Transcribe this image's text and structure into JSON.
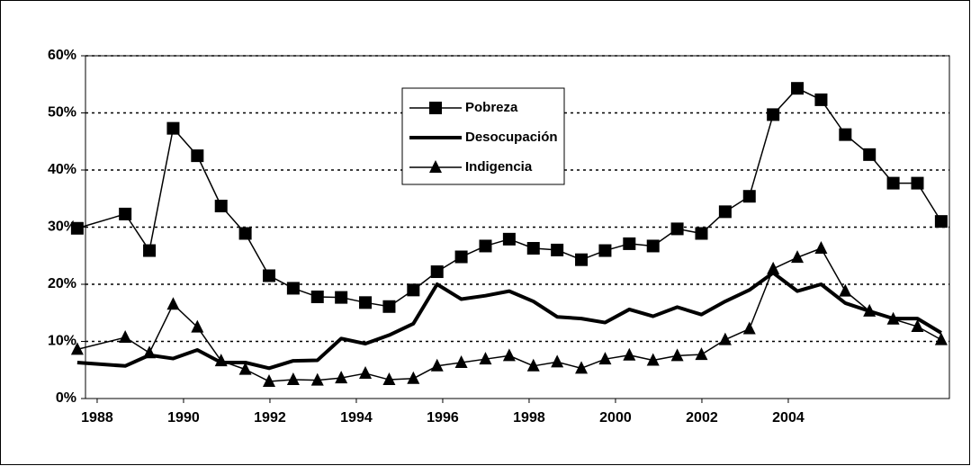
{
  "chart_data": {
    "type": "line",
    "x": [
      1987.54,
      1988.65,
      1989.21,
      1989.76,
      1990.32,
      1990.87,
      1991.43,
      1991.98,
      1992.54,
      1993.1,
      1993.65,
      1994.21,
      1994.76,
      1995.32,
      1995.87,
      1996.43,
      1996.99,
      1997.54,
      1998.1,
      1998.65,
      1999.21,
      1999.76,
      2000.32,
      2000.87,
      2001.43,
      2001.99,
      2002.54,
      2003.1,
      2003.65,
      2004.21,
      2004.76,
      2005.32,
      2005.88,
      2006.43,
      2006.99,
      2007.54
    ],
    "series": [
      {
        "name": "Pobreza",
        "color": "#000000",
        "marker": "square",
        "line_width": 1.5,
        "values": [
          29.8,
          32.3,
          25.9,
          47.3,
          42.5,
          33.7,
          28.9,
          21.5,
          19.3,
          17.8,
          17.7,
          16.8,
          16.1,
          19.0,
          22.2,
          24.8,
          26.7,
          27.9,
          26.3,
          26.0,
          24.3,
          25.9,
          27.1,
          26.7,
          29.7,
          28.9,
          32.7,
          35.4,
          49.7,
          54.3,
          52.3,
          46.2,
          42.7,
          37.7,
          37.7,
          31.0
        ]
      },
      {
        "name": "Desocupación",
        "color": "#000000",
        "marker": "none",
        "line_width": 4,
        "values": [
          6.3,
          5.7,
          7.6,
          7.0,
          8.5,
          6.3,
          6.3,
          5.3,
          6.6,
          6.7,
          10.5,
          9.6,
          11.1,
          13.1,
          20.0,
          17.4,
          18.0,
          18.8,
          17.0,
          14.3,
          14.0,
          13.3,
          15.6,
          14.4,
          16.0,
          14.7,
          17.0,
          19.0,
          22.0,
          18.8,
          20.0,
          16.7,
          15.3,
          14.0,
          14.0,
          11.5
        ]
      },
      {
        "name": "Indigencia",
        "color": "#000000",
        "marker": "triangle",
        "line_width": 1.5,
        "values": [
          8.6,
          10.7,
          8.0,
          16.5,
          12.5,
          6.6,
          5.1,
          3.0,
          3.3,
          3.2,
          3.6,
          4.4,
          3.3,
          3.5,
          5.7,
          6.3,
          6.9,
          7.5,
          5.7,
          6.4,
          5.3,
          6.9,
          7.6,
          6.7,
          7.5,
          7.7,
          10.3,
          12.2,
          22.7,
          24.7,
          26.3,
          18.8,
          15.3,
          13.9,
          12.6,
          10.3
        ]
      }
    ],
    "xlim": [
      1987.73,
      2007.73
    ],
    "xticks": [
      1988,
      1990,
      1992,
      1994,
      1996,
      1998,
      2000,
      2002,
      2004
    ],
    "ylim": [
      0,
      60
    ],
    "yticks": [
      {
        "value": 0,
        "label": "0%"
      },
      {
        "value": 10,
        "label": "10%"
      },
      {
        "value": 20,
        "label": "20%"
      },
      {
        "value": 30,
        "label": "30%"
      },
      {
        "value": 40,
        "label": "40%"
      },
      {
        "value": 50,
        "label": "50%"
      },
      {
        "value": 60,
        "label": "60%"
      }
    ],
    "grid": true,
    "legend": "top-center"
  }
}
